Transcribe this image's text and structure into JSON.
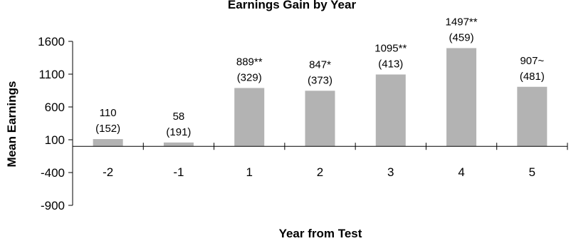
{
  "chart_data": {
    "type": "bar",
    "title": "Earnings Gain by Year",
    "xlabel": "Year from Test",
    "ylabel": "Mean Earnings",
    "categories": [
      "-2",
      "-1",
      "1",
      "2",
      "3",
      "4",
      "5"
    ],
    "values": [
      110,
      58,
      889,
      847,
      1095,
      1497,
      907
    ],
    "value_labels": [
      "110",
      "58",
      "889**",
      "847*",
      "1095**",
      "1497**",
      "907~"
    ],
    "std_errors": [
      "(152)",
      "(191)",
      "(329)",
      "(373)",
      "(413)",
      "(459)",
      "(481)"
    ],
    "y_ticks": [
      1600,
      1100,
      600,
      100,
      -400,
      -900
    ],
    "ylim": [
      -900,
      1600
    ],
    "grid": false,
    "bar_color": "#b3b3b3"
  }
}
